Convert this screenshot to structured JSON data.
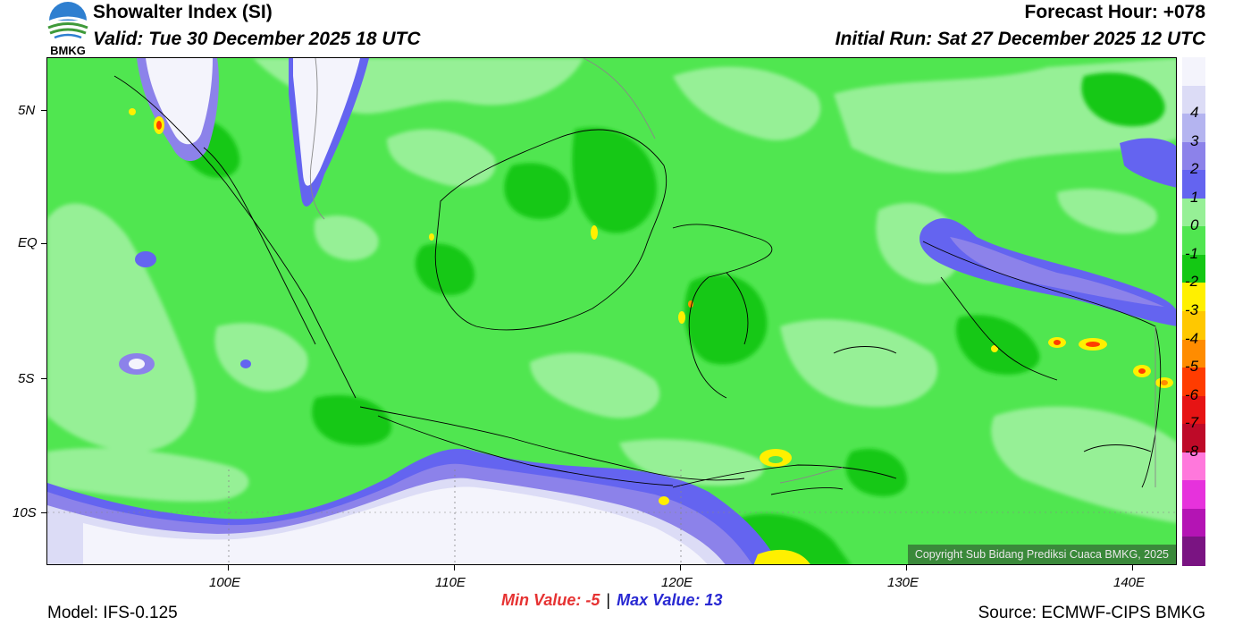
{
  "header": {
    "logo_text": "BMKG",
    "title": "Showalter Index (SI)",
    "valid": "Valid: Tue 30 December 2025 18 UTC",
    "forecast_hour": "Forecast Hour: +078",
    "initial_run": "Initial Run: Sat 27 December 2025 12 UTC"
  },
  "map": {
    "copyright": "Copyright Sub Bidang Prediksi Cuaca BMKG, 2025",
    "lat_ticks": [
      "5N",
      "EQ",
      "5S",
      "10S"
    ],
    "lon_ticks": [
      "100E",
      "110E",
      "120E",
      "130E",
      "140E"
    ]
  },
  "colorbar": {
    "labels": [
      "4",
      "3",
      "2",
      "1",
      "0",
      "-1",
      "-2",
      "-3",
      "-4",
      "-5",
      "-6",
      "-7",
      "-8"
    ],
    "colors": [
      "#f4f4fc",
      "#dcdcf6",
      "#b4b4f0",
      "#8c82ea",
      "#6464f0",
      "#96f096",
      "#50e650",
      "#14c814",
      "#fff000",
      "#ffc800",
      "#ff8c00",
      "#ff3c00",
      "#e61414",
      "#be0a28",
      "#ff78dc",
      "#e632dc",
      "#b414b4",
      "#7a1482"
    ]
  },
  "footer": {
    "model": "Model: IFS-0.125",
    "min_label": "Min Value:",
    "min_value": "-5",
    "separator": "|",
    "max_label": "Max Value:",
    "max_value": "13",
    "source": "Source: ECMWF-CIPS BMKG"
  },
  "colors": {
    "min": "#e63232",
    "max": "#2828d2",
    "land_bg": "#50e650"
  }
}
